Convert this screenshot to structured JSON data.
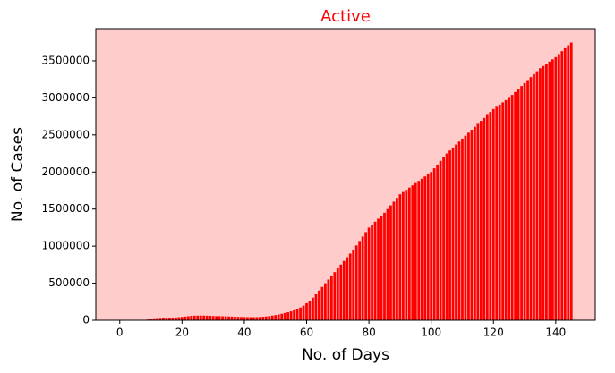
{
  "chart_data": {
    "type": "bar",
    "title": "Active",
    "title_color": "#ff0000",
    "xlabel": "No. of Days",
    "ylabel": "No. of Cases",
    "color": "#ff0000",
    "background": "#ffcccc",
    "x": [
      0,
      1,
      2,
      3,
      4,
      5,
      6,
      7,
      8,
      9,
      10,
      11,
      12,
      13,
      14,
      15,
      16,
      17,
      18,
      19,
      20,
      21,
      22,
      23,
      24,
      25,
      26,
      27,
      28,
      29,
      30,
      31,
      32,
      33,
      34,
      35,
      36,
      37,
      38,
      39,
      40,
      41,
      42,
      43,
      44,
      45,
      46,
      47,
      48,
      49,
      50,
      51,
      52,
      53,
      54,
      55,
      56,
      57,
      58,
      59,
      60,
      61,
      62,
      63,
      64,
      65,
      66,
      67,
      68,
      69,
      70,
      71,
      72,
      73,
      74,
      75,
      76,
      77,
      78,
      79,
      80,
      81,
      82,
      83,
      84,
      85,
      86,
      87,
      88,
      89,
      90,
      91,
      92,
      93,
      94,
      95,
      96,
      97,
      98,
      99,
      100,
      101,
      102,
      103,
      104,
      105,
      106,
      107,
      108,
      109,
      110,
      111,
      112,
      113,
      114,
      115,
      116,
      117,
      118,
      119,
      120,
      121,
      122,
      123,
      124,
      125,
      126,
      127,
      128,
      129,
      130,
      131,
      132,
      133,
      134,
      135,
      136,
      137,
      138,
      139,
      140,
      141,
      142,
      143,
      144,
      145
    ],
    "values": [
      1,
      1,
      1,
      2,
      2,
      3,
      5,
      6,
      20,
      10000,
      12000,
      15000,
      18000,
      21000,
      25000,
      28000,
      31000,
      34000,
      38000,
      42000,
      45000,
      50000,
      55000,
      60000,
      62000,
      63000,
      64000,
      63000,
      62000,
      60000,
      58000,
      56000,
      55000,
      54000,
      53000,
      52000,
      50000,
      48000,
      46000,
      45000,
      44000,
      43000,
      42000,
      42000,
      43000,
      45000,
      48000,
      52000,
      57000,
      63000,
      70000,
      78000,
      87000,
      97000,
      108000,
      120000,
      135000,
      152000,
      172000,
      198000,
      230000,
      265000,
      305000,
      350000,
      400000,
      450000,
      500000,
      550000,
      600000,
      650000,
      700000,
      750000,
      800000,
      850000,
      900000,
      950000,
      1010000,
      1070000,
      1130000,
      1190000,
      1250000,
      1290000,
      1330000,
      1370000,
      1410000,
      1450000,
      1500000,
      1550000,
      1600000,
      1650000,
      1700000,
      1730000,
      1760000,
      1790000,
      1820000,
      1850000,
      1880000,
      1910000,
      1940000,
      1970000,
      2000000,
      2050000,
      2100000,
      2150000,
      2200000,
      2250000,
      2290000,
      2330000,
      2370000,
      2410000,
      2450000,
      2490000,
      2530000,
      2570000,
      2610000,
      2650000,
      2690000,
      2730000,
      2770000,
      2810000,
      2850000,
      2880000,
      2910000,
      2940000,
      2970000,
      3000000,
      3040000,
      3080000,
      3120000,
      3160000,
      3200000,
      3240000,
      3280000,
      3320000,
      3360000,
      3400000,
      3430000,
      3460000,
      3490000,
      3520000,
      3550000,
      3590000,
      3630000,
      3670000,
      3710000,
      3747000
    ],
    "xlim": [
      -7.69,
      152.69
    ],
    "xticks": [
      0,
      20,
      40,
      60,
      80,
      100,
      120,
      140
    ],
    "ylim": [
      0,
      3934000
    ],
    "yticks": [
      0,
      500000,
      1000000,
      1500000,
      2000000,
      2500000,
      3000000,
      3500000
    ]
  }
}
